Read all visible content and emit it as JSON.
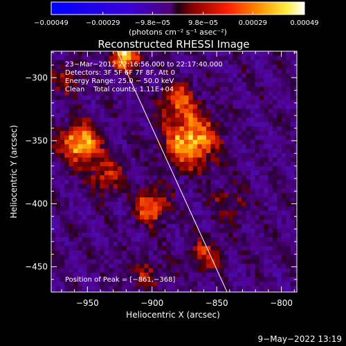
{
  "chart_data": {
    "type": "heatmap",
    "title": "Reconstructed RHESSI Image",
    "xlabel": "Heliocentric X (arcsec)",
    "ylabel": "Heliocentric Y (arcsec)",
    "xlim": [
      -978,
      -788
    ],
    "ylim": [
      -470,
      -279
    ],
    "x_ticks": [
      -950,
      -900,
      -850,
      -800
    ],
    "x_tick_labels": [
      "−950",
      "−900",
      "−850",
      "−800"
    ],
    "y_ticks": [
      -300,
      -350,
      -400,
      -450
    ],
    "y_tick_labels": [
      "−300",
      "−350",
      "−400",
      "−450"
    ],
    "colorbar": {
      "min": -0.00049,
      "max": 0.00049,
      "tick_values": [
        -0.00049,
        -0.00029,
        -9.8e-05,
        9.8e-05,
        0.00029,
        0.00049
      ],
      "tick_labels": [
        "−0.00049",
        "−0.00029",
        "−9.8e−05",
        "9.8e−05",
        "0.00029",
        "0.00049"
      ],
      "unit_label": "(photons cm⁻² s⁻¹ asec⁻²)"
    },
    "info_lines": [
      "23−Mar−2012 22:16:56.000 to 22:17:40.000",
      "Detectors: 3F 5F 6F 7F 8F, Att 0",
      "Energy Range: 25.0 − 50.0 keV",
      "Clean    Total counts: 1.11E+04"
    ],
    "peak_label": "Position of Peak = [−861,−368]",
    "peak": {
      "x": -861,
      "y": -368
    },
    "limb_line": [
      {
        "x": -927,
        "y": -279
      },
      {
        "x": -842,
        "y": -470
      }
    ],
    "bright_sources": [
      {
        "x": -920,
        "y": -283,
        "amp": 0.00045,
        "sigma": 8
      },
      {
        "x": -955,
        "y": -352,
        "amp": 0.00046,
        "sigma": 11
      },
      {
        "x": -870,
        "y": -350,
        "amp": 0.00047,
        "sigma": 14
      },
      {
        "x": -900,
        "y": -402,
        "amp": 0.00034,
        "sigma": 9
      },
      {
        "x": -880,
        "y": -318,
        "amp": 0.00028,
        "sigma": 10
      },
      {
        "x": -935,
        "y": -378,
        "amp": 0.00022,
        "sigma": 10
      },
      {
        "x": -860,
        "y": -440,
        "amp": 0.00024,
        "sigma": 9
      },
      {
        "x": -840,
        "y": -400,
        "amp": 0.00016,
        "sigma": 10
      },
      {
        "x": -905,
        "y": -455,
        "amp": 0.00015,
        "sigma": 10
      },
      {
        "x": -965,
        "y": -300,
        "amp": 0.00018,
        "sigma": 9
      }
    ],
    "grid": false,
    "legend": "none"
  },
  "footer": {
    "timestamp": "9−May−2022 13:19"
  }
}
